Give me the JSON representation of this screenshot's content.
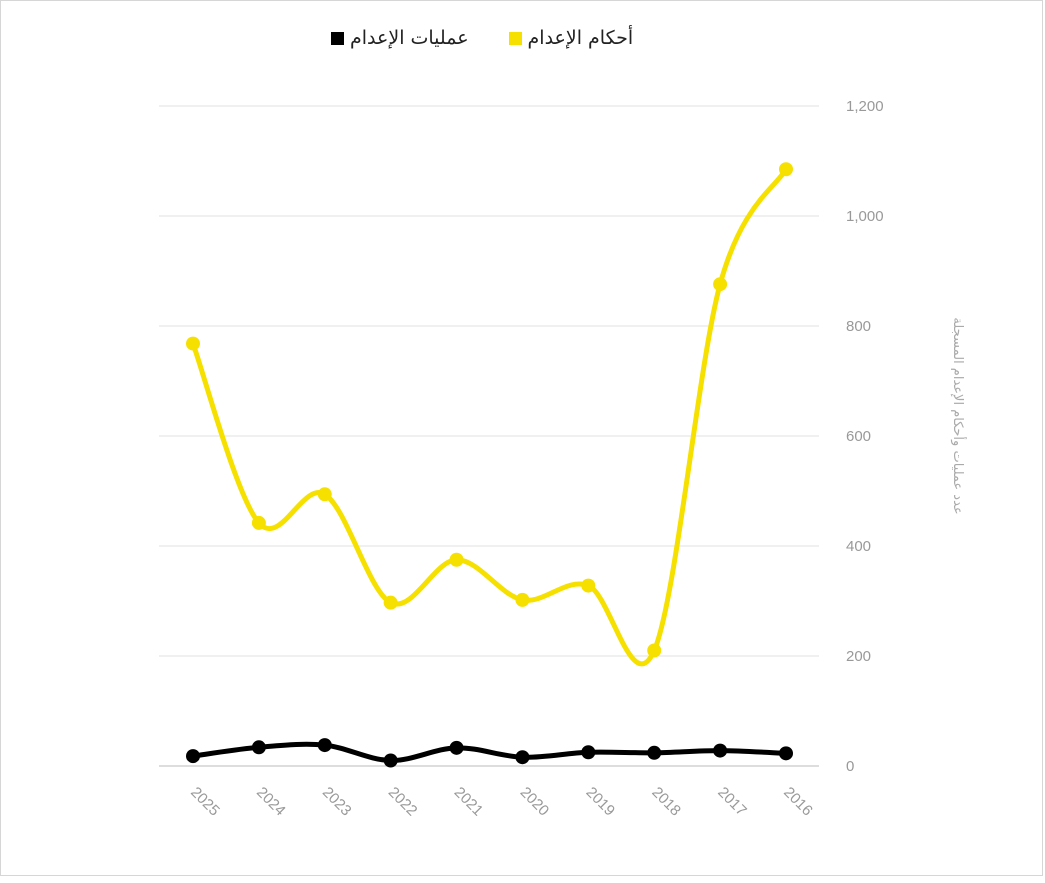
{
  "legend": [
    {
      "label": "أحكام الإعدام",
      "color": "#f5e000"
    },
    {
      "label": "عمليات الإعدام",
      "color": "#000000"
    }
  ],
  "chart_data": {
    "type": "line",
    "x": [
      "2025",
      "2024",
      "2023",
      "2022",
      "2021",
      "2020",
      "2019",
      "2018",
      "2017",
      "2016"
    ],
    "series": [
      {
        "name": "أحكام الإعدام",
        "color": "#f5e000",
        "values": [
          768,
          442,
          494,
          297,
          375,
          302,
          328,
          210,
          876,
          1085
        ]
      },
      {
        "name": "عمليات الإعدام",
        "color": "#000000",
        "values": [
          18,
          34,
          38,
          10,
          33,
          16,
          25,
          24,
          28,
          23
        ]
      }
    ],
    "ylabel": "عدد عمليات وأحكام الإعدام المسجلة",
    "ylim": [
      0,
      1200
    ],
    "yticks": [
      0,
      200,
      400,
      600,
      800,
      1000,
      1200
    ],
    "ytick_labels": [
      "0",
      "200",
      "400",
      "600",
      "800",
      "1,000",
      "1,200"
    ],
    "y_axis_side": "right",
    "grid": true,
    "legend_position": "top"
  }
}
